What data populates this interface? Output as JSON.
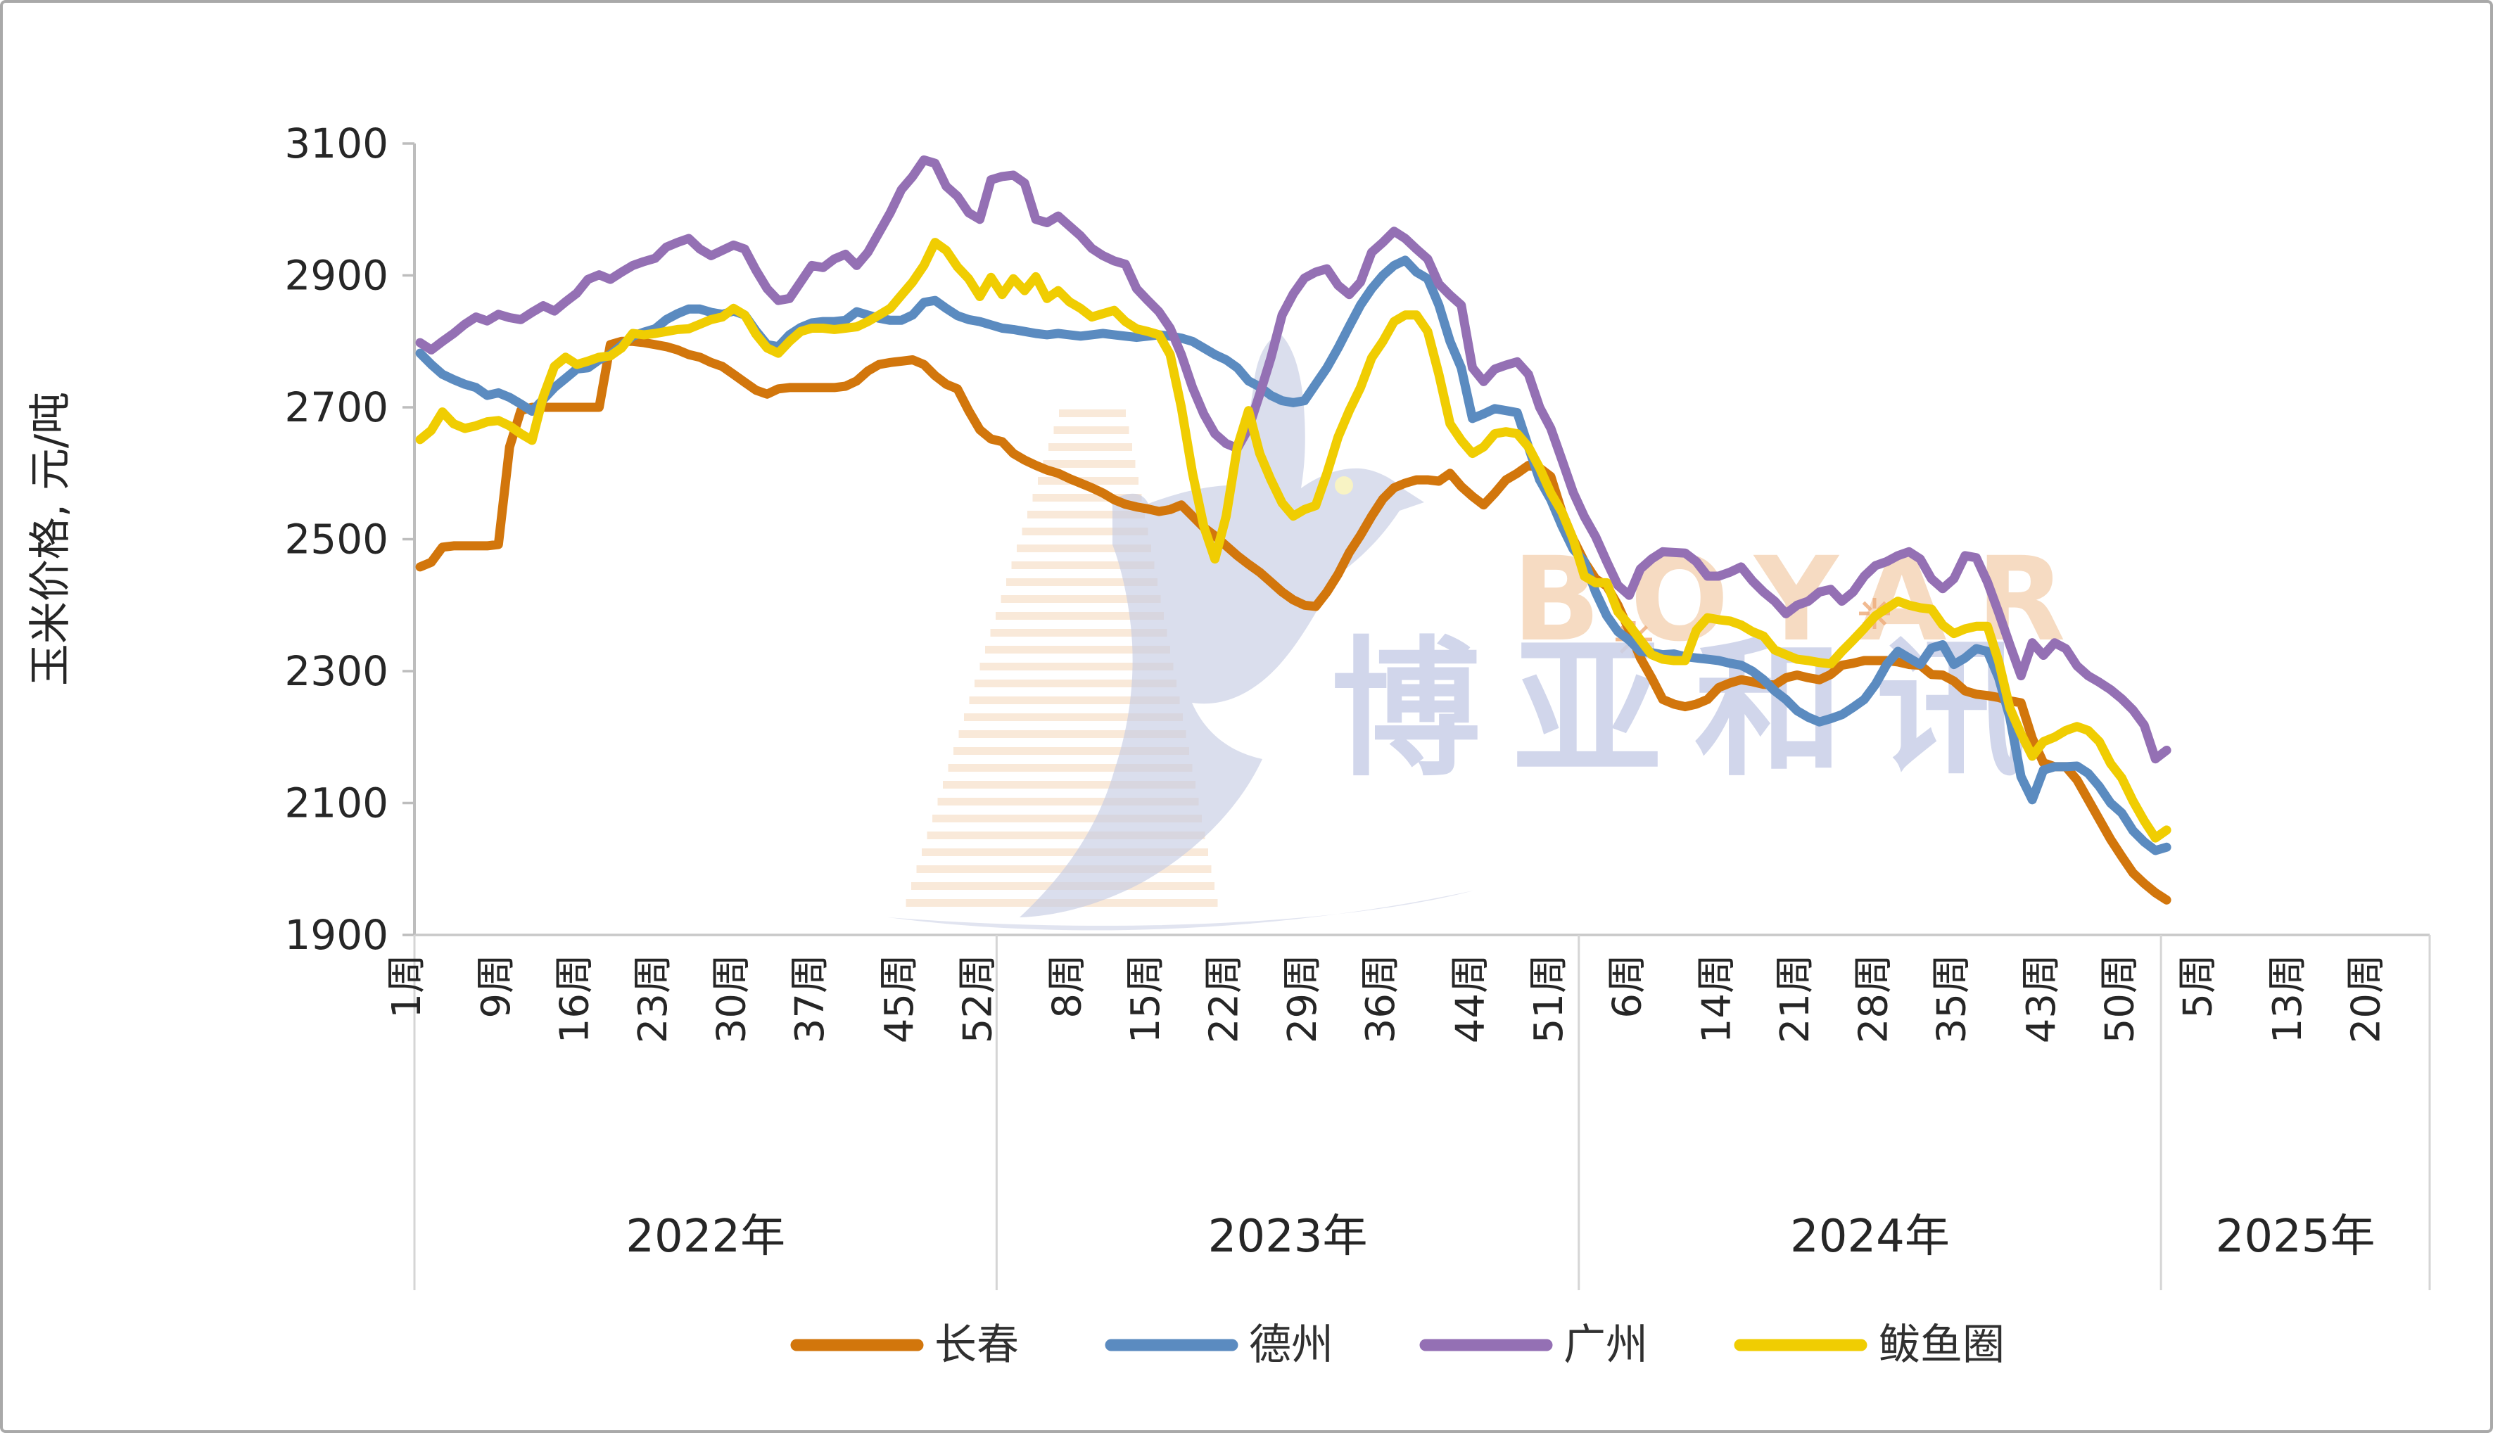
{
  "chart_data": {
    "type": "line",
    "title": "",
    "xlabel": "",
    "ylabel": "玉米价格, 元/吨",
    "ylim": [
      1900,
      3100
    ],
    "yticks": [
      1900,
      2100,
      2300,
      2500,
      2700,
      2900,
      3100
    ],
    "grid": "off",
    "legend_position": "bottom",
    "x_axis": {
      "unit_suffix": "周",
      "total_weeks": 180,
      "years": [
        {
          "label": "2022年",
          "start_index": 0,
          "n_weeks": 52,
          "labeled_weeks": [
            1,
            9,
            16,
            23,
            30,
            37,
            45,
            52
          ]
        },
        {
          "label": "2023年",
          "start_index": 52,
          "n_weeks": 52,
          "labeled_weeks": [
            8,
            15,
            22,
            29,
            36,
            44,
            51
          ]
        },
        {
          "label": "2024年",
          "start_index": 104,
          "n_weeks": 52,
          "labeled_weeks": [
            6,
            14,
            21,
            28,
            35,
            43,
            50
          ]
        },
        {
          "label": "2025年",
          "start_index": 156,
          "n_weeks": 24,
          "labeled_weeks": [
            5,
            13,
            20
          ]
        }
      ]
    },
    "series": [
      {
        "key": "changchun",
        "name": "长春",
        "color": "#D2760C",
        "values": [
          2458,
          2465,
          2488,
          2490,
          2490,
          2490,
          2490,
          2492,
          2640,
          2695,
          2700,
          2700,
          2700,
          2700,
          2700,
          2700,
          2700,
          2795,
          2800,
          2800,
          2798,
          2795,
          2792,
          2787,
          2780,
          2776,
          2768,
          2762,
          2750,
          2738,
          2726,
          2720,
          2728,
          2730,
          2730,
          2730,
          2730,
          2730,
          2732,
          2740,
          2755,
          2765,
          2768,
          2770,
          2772,
          2765,
          2748,
          2735,
          2728,
          2695,
          2666,
          2652,
          2648,
          2630,
          2620,
          2612,
          2605,
          2600,
          2592,
          2585,
          2578,
          2570,
          2560,
          2553,
          2549,
          2546,
          2542,
          2545,
          2552,
          2535,
          2518,
          2505,
          2490,
          2475,
          2462,
          2450,
          2435,
          2420,
          2408,
          2400,
          2398,
          2420,
          2447,
          2480,
          2506,
          2535,
          2561,
          2578,
          2585,
          2590,
          2590,
          2588,
          2600,
          2580,
          2565,
          2552,
          2570,
          2590,
          2600,
          2612,
          2608,
          2595,
          2541,
          2500,
          2466,
          2440,
          2429,
          2400,
          2362,
          2320,
          2290,
          2257,
          2250,
          2246,
          2250,
          2257,
          2275,
          2282,
          2287,
          2284,
          2280,
          2279,
          2290,
          2294,
          2290,
          2287,
          2295,
          2309,
          2312,
          2316,
          2316,
          2316,
          2314,
          2310,
          2309,
          2295,
          2294,
          2285,
          2270,
          2265,
          2263,
          2260,
          2255,
          2252,
          2198,
          2161,
          2155,
          2155,
          2135,
          2105,
          2075,
          2045,
          2019,
          1994,
          1978,
          1964,
          1953
        ]
      },
      {
        "key": "dezhou",
        "name": "德州",
        "color": "#5B8BC0",
        "values": [
          2782,
          2765,
          2750,
          2742,
          2735,
          2730,
          2718,
          2722,
          2715,
          2705,
          2694,
          2712,
          2730,
          2744,
          2758,
          2760,
          2772,
          2780,
          2794,
          2808,
          2814,
          2819,
          2833,
          2842,
          2849,
          2849,
          2844,
          2841,
          2846,
          2840,
          2816,
          2795,
          2792,
          2810,
          2821,
          2828,
          2830,
          2830,
          2832,
          2845,
          2840,
          2835,
          2832,
          2832,
          2840,
          2859,
          2862,
          2850,
          2839,
          2833,
          2830,
          2825,
          2820,
          2818,
          2815,
          2812,
          2810,
          2812,
          2810,
          2808,
          2810,
          2812,
          2810,
          2808,
          2806,
          2808,
          2810,
          2808,
          2805,
          2800,
          2790,
          2780,
          2772,
          2760,
          2740,
          2731,
          2718,
          2710,
          2707,
          2710,
          2735,
          2760,
          2790,
          2823,
          2855,
          2880,
          2900,
          2915,
          2923,
          2905,
          2895,
          2855,
          2800,
          2760,
          2683,
          2690,
          2698,
          2695,
          2692,
          2640,
          2590,
          2560,
          2520,
          2485,
          2466,
          2420,
          2384,
          2360,
          2347,
          2330,
          2328,
          2325,
          2326,
          2322,
          2320,
          2318,
          2316,
          2312,
          2309,
          2300,
          2287,
          2270,
          2257,
          2240,
          2230,
          2223,
          2228,
          2234,
          2245,
          2257,
          2280,
          2310,
          2330,
          2320,
          2310,
          2335,
          2340,
          2310,
          2320,
          2334,
          2330,
          2290,
          2230,
          2140,
          2105,
          2150,
          2155,
          2155,
          2156,
          2145,
          2125,
          2100,
          2085,
          2058,
          2041,
          2028,
          2033
        ]
      },
      {
        "key": "guangzhou",
        "name": "广州",
        "color": "#9470B4",
        "values": [
          2798,
          2787,
          2800,
          2812,
          2826,
          2837,
          2831,
          2841,
          2836,
          2833,
          2844,
          2854,
          2846,
          2860,
          2873,
          2894,
          2901,
          2894,
          2905,
          2915,
          2921,
          2926,
          2943,
          2950,
          2956,
          2940,
          2930,
          2938,
          2946,
          2940,
          2908,
          2880,
          2862,
          2865,
          2890,
          2915,
          2912,
          2925,
          2932,
          2915,
          2935,
          2965,
          2995,
          3030,
          3050,
          3075,
          3070,
          3035,
          3020,
          2995,
          2985,
          3045,
          3050,
          3052,
          3040,
          2985,
          2980,
          2990,
          2975,
          2960,
          2941,
          2930,
          2922,
          2917,
          2880,
          2862,
          2845,
          2820,
          2780,
          2730,
          2690,
          2660,
          2645,
          2638,
          2668,
          2720,
          2775,
          2840,
          2872,
          2896,
          2905,
          2910,
          2885,
          2871,
          2890,
          2935,
          2950,
          2967,
          2956,
          2940,
          2925,
          2887,
          2870,
          2855,
          2760,
          2739,
          2758,
          2764,
          2769,
          2750,
          2700,
          2668,
          2620,
          2571,
          2534,
          2504,
          2466,
          2430,
          2415,
          2455,
          2470,
          2481,
          2480,
          2479,
          2466,
          2444,
          2444,
          2450,
          2458,
          2437,
          2420,
          2406,
          2387,
          2400,
          2406,
          2420,
          2424,
          2406,
          2420,
          2444,
          2460,
          2466,
          2475,
          2481,
          2470,
          2440,
          2425,
          2440,
          2475,
          2472,
          2435,
          2389,
          2340,
          2293,
          2343,
          2324,
          2343,
          2334,
          2308,
          2293,
          2283,
          2272,
          2258,
          2241,
          2218,
          2167,
          2180
        ]
      },
      {
        "key": "bayuquan",
        "name": "鲅鱼圈",
        "color": "#F0CD02",
        "values": [
          2651,
          2665,
          2693,
          2675,
          2668,
          2672,
          2678,
          2680,
          2672,
          2660,
          2650,
          2716,
          2762,
          2776,
          2765,
          2770,
          2776,
          2778,
          2790,
          2812,
          2810,
          2812,
          2815,
          2818,
          2819,
          2826,
          2833,
          2837,
          2850,
          2840,
          2811,
          2790,
          2782,
          2800,
          2815,
          2820,
          2820,
          2818,
          2820,
          2822,
          2830,
          2840,
          2850,
          2870,
          2890,
          2915,
          2950,
          2938,
          2913,
          2895,
          2868,
          2897,
          2871,
          2895,
          2877,
          2898,
          2865,
          2877,
          2860,
          2850,
          2837,
          2842,
          2847,
          2830,
          2819,
          2815,
          2810,
          2780,
          2700,
          2600,
          2520,
          2470,
          2535,
          2640,
          2695,
          2630,
          2590,
          2555,
          2535,
          2545,
          2551,
          2600,
          2655,
          2695,
          2730,
          2775,
          2800,
          2830,
          2840,
          2840,
          2815,
          2750,
          2675,
          2650,
          2630,
          2640,
          2660,
          2663,
          2660,
          2640,
          2608,
          2570,
          2541,
          2500,
          2444,
          2434,
          2434,
          2390,
          2370,
          2347,
          2325,
          2318,
          2316,
          2316,
          2362,
          2381,
          2378,
          2376,
          2370,
          2360,
          2353,
          2332,
          2325,
          2318,
          2316,
          2313,
          2311,
          2330,
          2347,
          2365,
          2384,
          2395,
          2406,
          2400,
          2396,
          2394,
          2370,
          2357,
          2364,
          2368,
          2368,
          2315,
          2244,
          2205,
          2171,
          2193,
          2200,
          2210,
          2216,
          2210,
          2193,
          2160,
          2138,
          2103,
          2073,
          2047,
          2059
        ]
      }
    ]
  },
  "legend": {
    "items": [
      {
        "key": "changchun",
        "label": "长春"
      },
      {
        "key": "dezhou",
        "label": "德州"
      },
      {
        "key": "guangzhou",
        "label": "广州"
      },
      {
        "key": "bayuquan",
        "label": "鲅鱼圈"
      }
    ]
  },
  "watermark": {
    "cn_text": "博亚和讯",
    "en_text": "BOYAR",
    "dove_color": "#C3C9E2",
    "cn_color": "#CBD1E9",
    "en_color": "#F6D8BC",
    "stripe_color": "#F7E3CF",
    "eye_color": "#F8F3C4"
  },
  "style": {
    "axis_line_color": "#BDBDBD",
    "baseline_color": "#C8C8C8",
    "separator_color": "#D5D5D5",
    "tick_label_color": "#262626",
    "legend_text_color": "#303030",
    "frame_border_color": "#A9A9A9",
    "background": "#FFFFFF"
  }
}
